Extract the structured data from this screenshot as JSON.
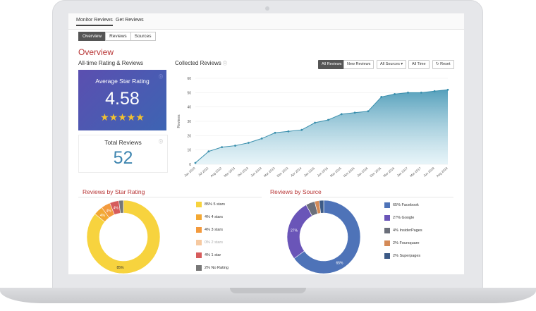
{
  "nav": {
    "tabs": [
      "Monitor Reviews",
      "Get Reviews"
    ]
  },
  "subtabs": [
    "Overview",
    "Reviews",
    "Sources"
  ],
  "page_title": "Overview",
  "rating_section": {
    "title": "All-time Rating & Reviews"
  },
  "rating_card": {
    "label": "Average Star Rating",
    "value": "4.58",
    "stars": "★★★★★"
  },
  "total_card": {
    "label": "Total Reviews",
    "value": "52"
  },
  "collected": {
    "title": "Collected Reviews",
    "buttons": {
      "all": "All Reviews",
      "new": "New Reviews",
      "sources": "All Sources ▾",
      "time": "All Time",
      "reset": "Reset"
    }
  },
  "star_section": {
    "title": "Reviews by Star Rating"
  },
  "source_section": {
    "title": "Reviews by Source"
  },
  "colors": {
    "accent": "#b83535",
    "line": "#3a8fad",
    "fill": "#7fbfd3"
  },
  "chart_data": [
    {
      "type": "area",
      "title": "Collected Reviews",
      "ylabel": "Reviews",
      "ylim": [
        0,
        60
      ],
      "yticks": [
        "0",
        "10",
        "20",
        "30",
        "40",
        "50",
        "60"
      ],
      "categories": [
        "Jan 2010",
        "Jul 2012",
        "Aug 2012",
        "Mar 2013",
        "Oct 2013",
        "Jun 2013",
        "Mar 2013",
        "Dec 2013",
        "Apr 2014",
        "Jan 2015",
        "Jun 2015",
        "Mar 2015",
        "Nov 2016",
        "Jan 2016",
        "Dec 2016",
        "Mar 2016",
        "Jan 2017",
        "Mar 2017",
        "Jun 2018",
        "Aug 2019"
      ],
      "values": [
        1,
        9,
        12,
        13,
        15,
        18,
        22,
        23,
        24,
        29,
        31,
        35,
        36,
        37,
        47,
        49,
        50,
        50,
        51,
        52
      ]
    },
    {
      "type": "pie",
      "title": "Reviews by Star Rating",
      "labels": [
        "85% 5 stars",
        "4% 4 stars",
        "4% 3 stars",
        "0% 2 stars",
        "4% 1 star",
        "2% No Rating"
      ],
      "values": [
        85,
        4,
        4,
        0,
        4,
        2
      ],
      "colors": [
        "#f7d33e",
        "#f3a833",
        "#f39a3d",
        "#f6c9a0",
        "#d65c5c",
        "#777777"
      ],
      "slice_labels": [
        "85%",
        "4%",
        "4%",
        "",
        "4%",
        ""
      ]
    },
    {
      "type": "pie",
      "title": "Reviews by Source",
      "labels": [
        "65% Facebook",
        "27% Google",
        "4% InsiderPages",
        "2% Foursquare",
        "2% Superpages"
      ],
      "values": [
        65,
        27,
        4,
        2,
        2
      ],
      "colors": [
        "#4e73b8",
        "#6a55b8",
        "#6b6f7a",
        "#d48a57",
        "#3c5a86"
      ],
      "slice_labels": [
        "65%",
        "27%",
        "",
        "",
        ""
      ]
    }
  ]
}
